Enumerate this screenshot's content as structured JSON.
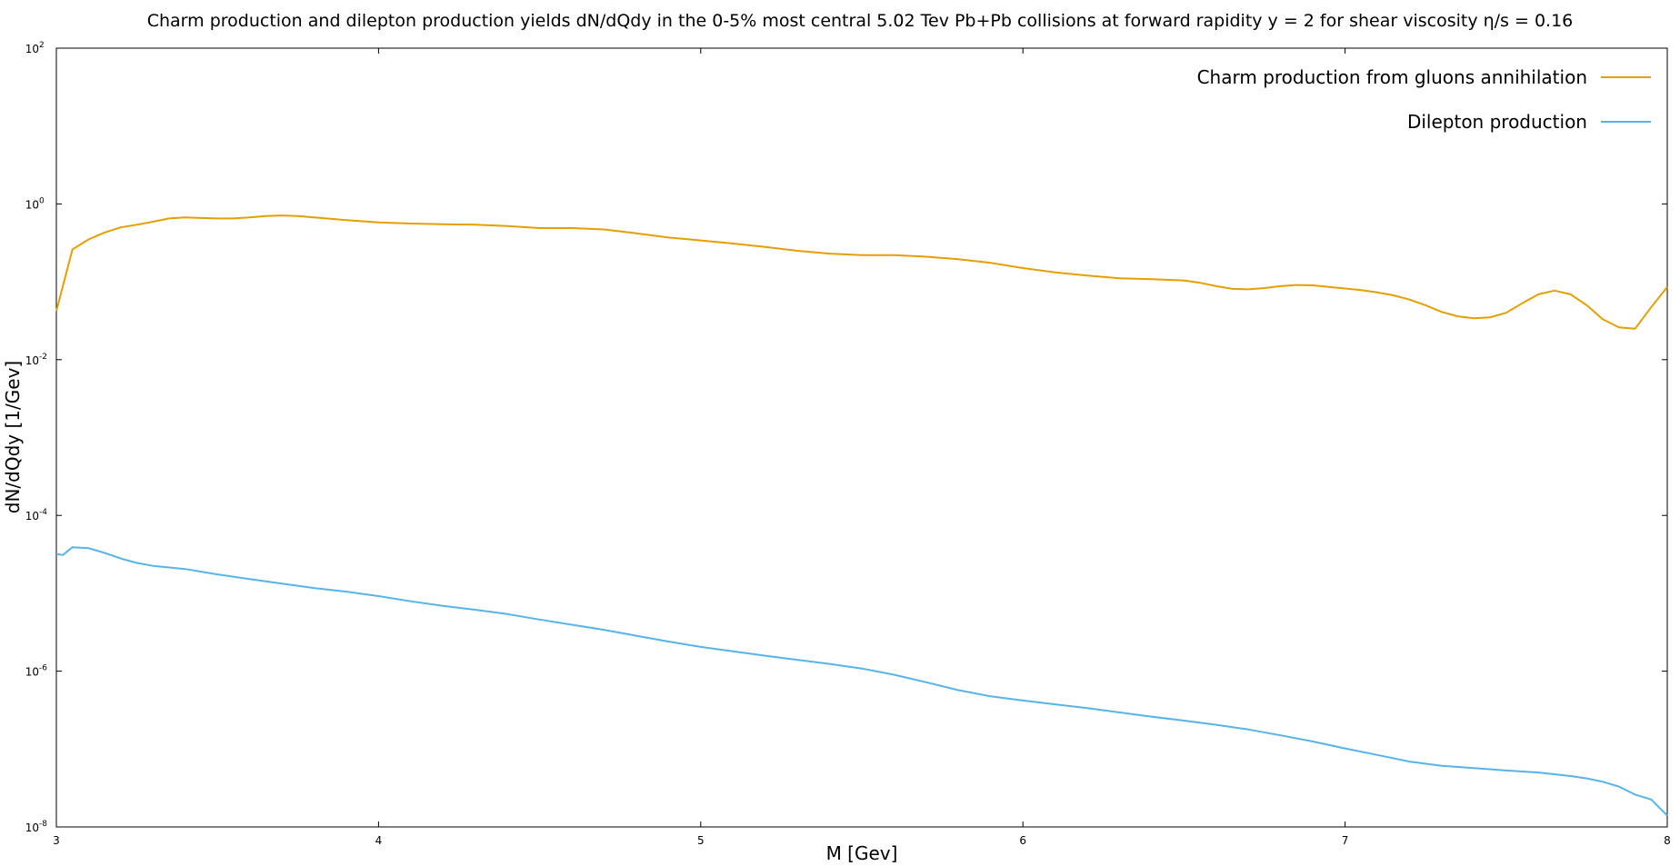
{
  "chart_data": {
    "type": "line",
    "title": "Charm production and dilepton production yields dN/dQdy in the 0-5% most central 5.02 Tev Pb+Pb collisions at forward rapidity y = 2 for shear viscosity η/s = 0.16",
    "xlabel": "M [Gev]",
    "ylabel": "dN/dQdy [1/Gev]",
    "xlim": [
      3,
      8
    ],
    "ylim": [
      1e-08,
      100
    ],
    "y_scale": "log",
    "grid": false,
    "legend_position": "top-right",
    "x_ticks": [
      {
        "value": 3,
        "label": "3"
      },
      {
        "value": 4,
        "label": "4"
      },
      {
        "value": 5,
        "label": "5"
      },
      {
        "value": 6,
        "label": "6"
      },
      {
        "value": 7,
        "label": "7"
      },
      {
        "value": 8,
        "label": "8"
      }
    ],
    "y_ticks": [
      {
        "value": 1e-08,
        "base": "10",
        "exp": "-8"
      },
      {
        "value": 1e-06,
        "base": "10",
        "exp": "-6"
      },
      {
        "value": 0.0001,
        "base": "10",
        "exp": "-4"
      },
      {
        "value": 0.01,
        "base": "10",
        "exp": "-2"
      },
      {
        "value": 1,
        "base": "10",
        "exp": "0"
      },
      {
        "value": 100,
        "base": "10",
        "exp": "2"
      }
    ],
    "series": [
      {
        "name": "Charm production from gluons annihilation",
        "color": "#e69f00",
        "x": [
          3.0,
          3.05,
          3.1,
          3.15,
          3.2,
          3.25,
          3.3,
          3.35,
          3.4,
          3.45,
          3.5,
          3.55,
          3.6,
          3.65,
          3.7,
          3.75,
          3.8,
          3.9,
          4.0,
          4.1,
          4.2,
          4.3,
          4.4,
          4.5,
          4.6,
          4.7,
          4.8,
          4.9,
          5.0,
          5.1,
          5.2,
          5.3,
          5.4,
          5.5,
          5.6,
          5.7,
          5.8,
          5.9,
          6.0,
          6.1,
          6.2,
          6.3,
          6.4,
          6.5,
          6.55,
          6.6,
          6.65,
          6.7,
          6.75,
          6.8,
          6.85,
          6.9,
          6.95,
          7.0,
          7.05,
          7.1,
          7.15,
          7.2,
          7.25,
          7.3,
          7.35,
          7.4,
          7.45,
          7.5,
          7.55,
          7.6,
          7.65,
          7.7,
          7.75,
          7.8,
          7.85,
          7.9,
          7.95,
          8.0
        ],
        "y": [
          0.042,
          0.26,
          0.35,
          0.43,
          0.5,
          0.54,
          0.59,
          0.65,
          0.67,
          0.66,
          0.65,
          0.65,
          0.67,
          0.7,
          0.71,
          0.7,
          0.67,
          0.62,
          0.58,
          0.56,
          0.55,
          0.54,
          0.52,
          0.49,
          0.49,
          0.47,
          0.42,
          0.37,
          0.34,
          0.31,
          0.28,
          0.25,
          0.23,
          0.22,
          0.22,
          0.21,
          0.195,
          0.175,
          0.15,
          0.132,
          0.12,
          0.111,
          0.108,
          0.104,
          0.097,
          0.088,
          0.081,
          0.08,
          0.083,
          0.088,
          0.091,
          0.09,
          0.086,
          0.082,
          0.078,
          0.073,
          0.067,
          0.059,
          0.05,
          0.041,
          0.036,
          0.034,
          0.035,
          0.04,
          0.053,
          0.069,
          0.077,
          0.069,
          0.05,
          0.033,
          0.026,
          0.025,
          0.047,
          0.086
        ]
      },
      {
        "name": "Dilepton production",
        "color": "#56b4e9",
        "x": [
          3.0,
          3.02,
          3.05,
          3.1,
          3.15,
          3.2,
          3.25,
          3.3,
          3.4,
          3.5,
          3.6,
          3.7,
          3.8,
          3.9,
          4.0,
          4.1,
          4.2,
          4.3,
          4.4,
          4.5,
          4.6,
          4.7,
          4.8,
          4.9,
          5.0,
          5.1,
          5.2,
          5.3,
          5.4,
          5.5,
          5.6,
          5.7,
          5.8,
          5.9,
          6.0,
          6.1,
          6.2,
          6.3,
          6.4,
          6.5,
          6.6,
          6.7,
          6.8,
          6.9,
          7.0,
          7.1,
          7.2,
          7.3,
          7.4,
          7.5,
          7.6,
          7.7,
          7.75,
          7.8,
          7.85,
          7.9,
          7.95,
          8.0
        ],
        "y": [
          3.2e-05,
          3.1e-05,
          3.9e-05,
          3.8e-05,
          3.3e-05,
          2.8e-05,
          2.45e-05,
          2.25e-05,
          2.05e-05,
          1.75e-05,
          1.52e-05,
          1.33e-05,
          1.17e-05,
          1.05e-05,
          9.2e-06,
          7.9e-06,
          6.9e-06,
          6.15e-06,
          5.4e-06,
          4.6e-06,
          3.95e-06,
          3.4e-06,
          2.85e-06,
          2.4e-06,
          2.05e-06,
          1.8e-06,
          1.58e-06,
          1.4e-06,
          1.24e-06,
          1.08e-06,
          9e-07,
          7.2e-07,
          5.7e-07,
          4.75e-07,
          4.2e-07,
          3.75e-07,
          3.35e-07,
          2.95e-07,
          2.6e-07,
          2.32e-07,
          2.05e-07,
          1.78e-07,
          1.5e-07,
          1.25e-07,
          1.02e-07,
          8.4e-08,
          6.9e-08,
          6.1e-08,
          5.7e-08,
          5.3e-08,
          5e-08,
          4.5e-08,
          4.2e-08,
          3.8e-08,
          3.3e-08,
          2.6e-08,
          2.25e-08,
          1.4e-08
        ]
      }
    ]
  }
}
